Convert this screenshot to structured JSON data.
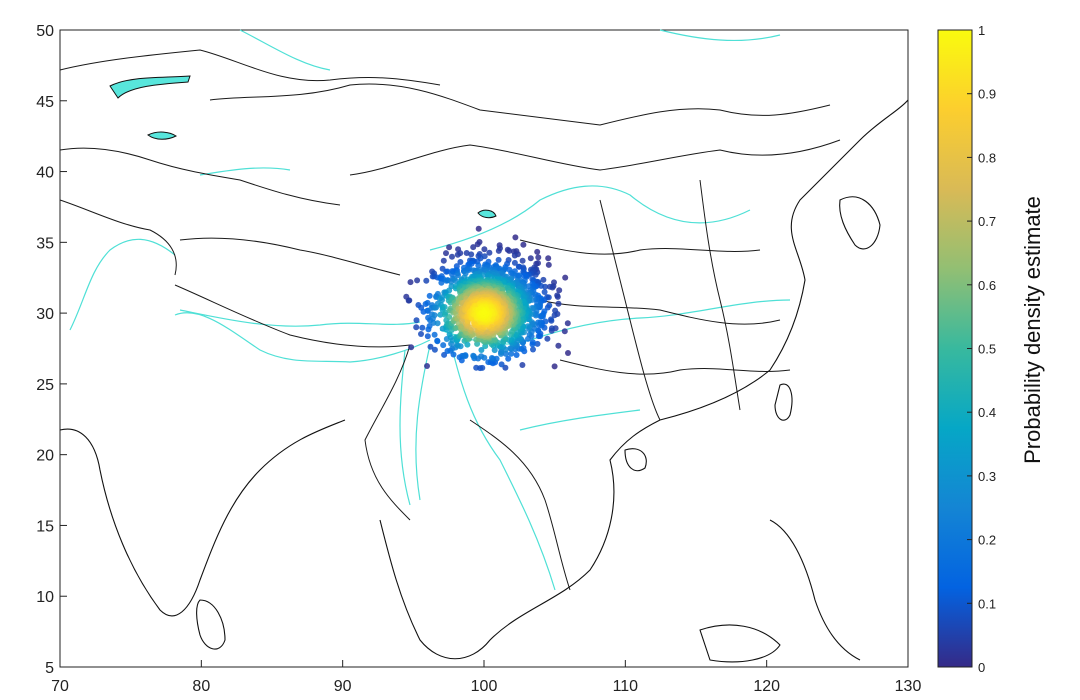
{
  "map": {
    "x_ticks": [
      "70",
      "80",
      "90",
      "100",
      "110",
      "120",
      "130"
    ],
    "y_ticks": [
      "5",
      "10",
      "15",
      "20",
      "25",
      "30",
      "35",
      "40",
      "45",
      "50"
    ],
    "lon_range": [
      70,
      130
    ],
    "lat_range": [
      5,
      50
    ],
    "river_color": "#4fe0d6",
    "lake_color": "#58e6dc",
    "border_color": "#1a1a1a"
  },
  "colorbar": {
    "title": "Probability density estimate",
    "ticks": [
      "0",
      "0.1",
      "0.2",
      "0.3",
      "0.4",
      "0.5",
      "0.6",
      "0.7",
      "0.8",
      "0.9",
      "1"
    ],
    "range": [
      0,
      1
    ],
    "colormap": "parula",
    "colormap_stops": [
      "#352a87",
      "#0363e1",
      "#1485d4",
      "#06a7c6",
      "#38b99e",
      "#92bf73",
      "#d9ba56",
      "#fcce2e",
      "#f9fb0e"
    ]
  },
  "chart_data": {
    "type": "scatter",
    "title": "",
    "xlabel": "",
    "ylabel": "",
    "xlim": [
      70,
      130
    ],
    "ylim": [
      5,
      50
    ],
    "cluster": {
      "center_lon": 100.5,
      "center_lat": 30.5,
      "peak_lon": 100,
      "peak_lat": 30,
      "extent_lon": [
        94,
        106
      ],
      "extent_lat": [
        26,
        36
      ],
      "peak_density": 1.0
    }
  }
}
